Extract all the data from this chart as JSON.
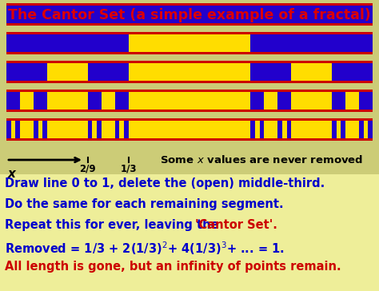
{
  "title": "The Cantor Set (a simple example of a fractal)",
  "title_color": "#dd0000",
  "title_fontsize": 12.5,
  "bg_color": "#cccc77",
  "bottom_bg": "#eeee88",
  "stripe_yellow": "#ffdd00",
  "stripe_blue": "#2200cc",
  "stripe_red": "#cc0000",
  "n_rows": 5,
  "figsize": [
    4.74,
    3.64
  ],
  "dpi": 100,
  "text_lines_blue": [
    "Draw line 0 to 1, delete the (open) middle-third.",
    "Do the same for each remaining segment.",
    "Removed = 1/3 + 2(1/3)$^2$+ 4(1/3)$^3$+ ... = 1."
  ],
  "text_color_blue": "#0000cc",
  "text_color_red": "#cc0000",
  "text_fontsize": 10.5
}
